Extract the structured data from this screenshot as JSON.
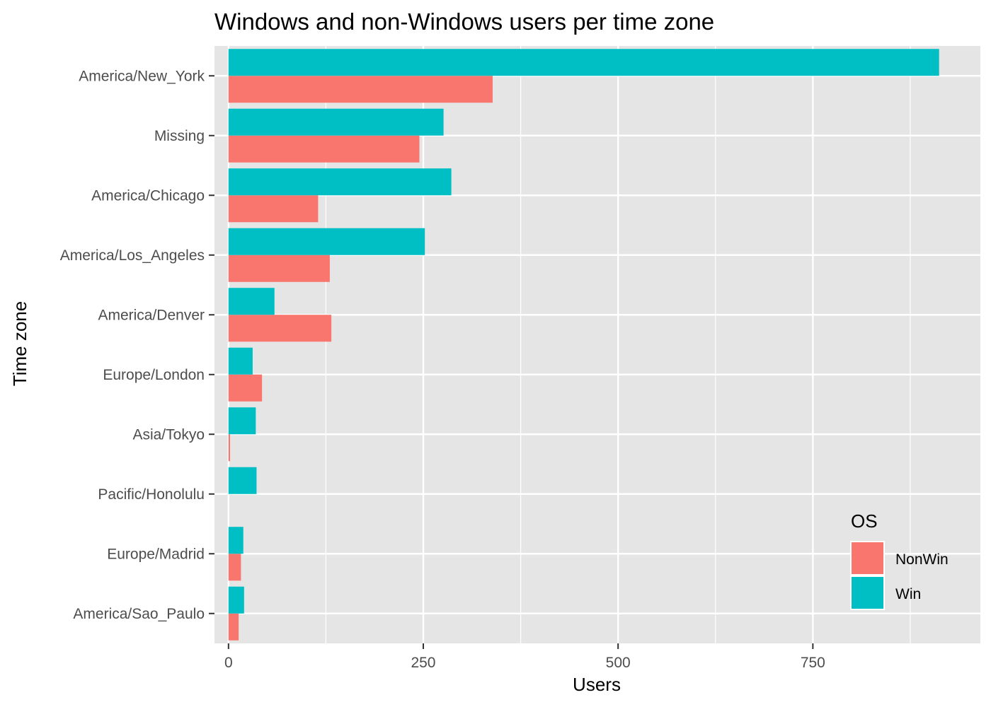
{
  "chart_data": {
    "type": "bar",
    "orientation": "horizontal",
    "title": "Windows and non-Windows users per time zone",
    "xlabel": "Users",
    "ylabel": "Time zone",
    "xlim": [
      -18,
      965
    ],
    "xticks": [
      0,
      250,
      500,
      750
    ],
    "grid": true,
    "categories": [
      "America/New_York",
      "Missing",
      "America/Chicago",
      "America/Los_Angeles",
      "America/Denver",
      "Europe/London",
      "Asia/Tokyo",
      "Pacific/Honolulu",
      "Europe/Madrid",
      "America/Sao_Paulo"
    ],
    "series": [
      {
        "name": "NonWin",
        "color": "#F8766D",
        "values": [
          339,
          245,
          115,
          130,
          132,
          43,
          2,
          0,
          16,
          13
        ]
      },
      {
        "name": "Win",
        "color": "#00BFC4",
        "values": [
          912,
          276,
          286,
          252,
          59,
          31,
          35,
          36,
          19,
          20
        ]
      }
    ],
    "legend": {
      "title": "OS",
      "position": "bottom-right"
    }
  },
  "colors": {
    "panel": "#E5E5E5",
    "grid": "#FFFFFF",
    "tick": "#333333"
  }
}
